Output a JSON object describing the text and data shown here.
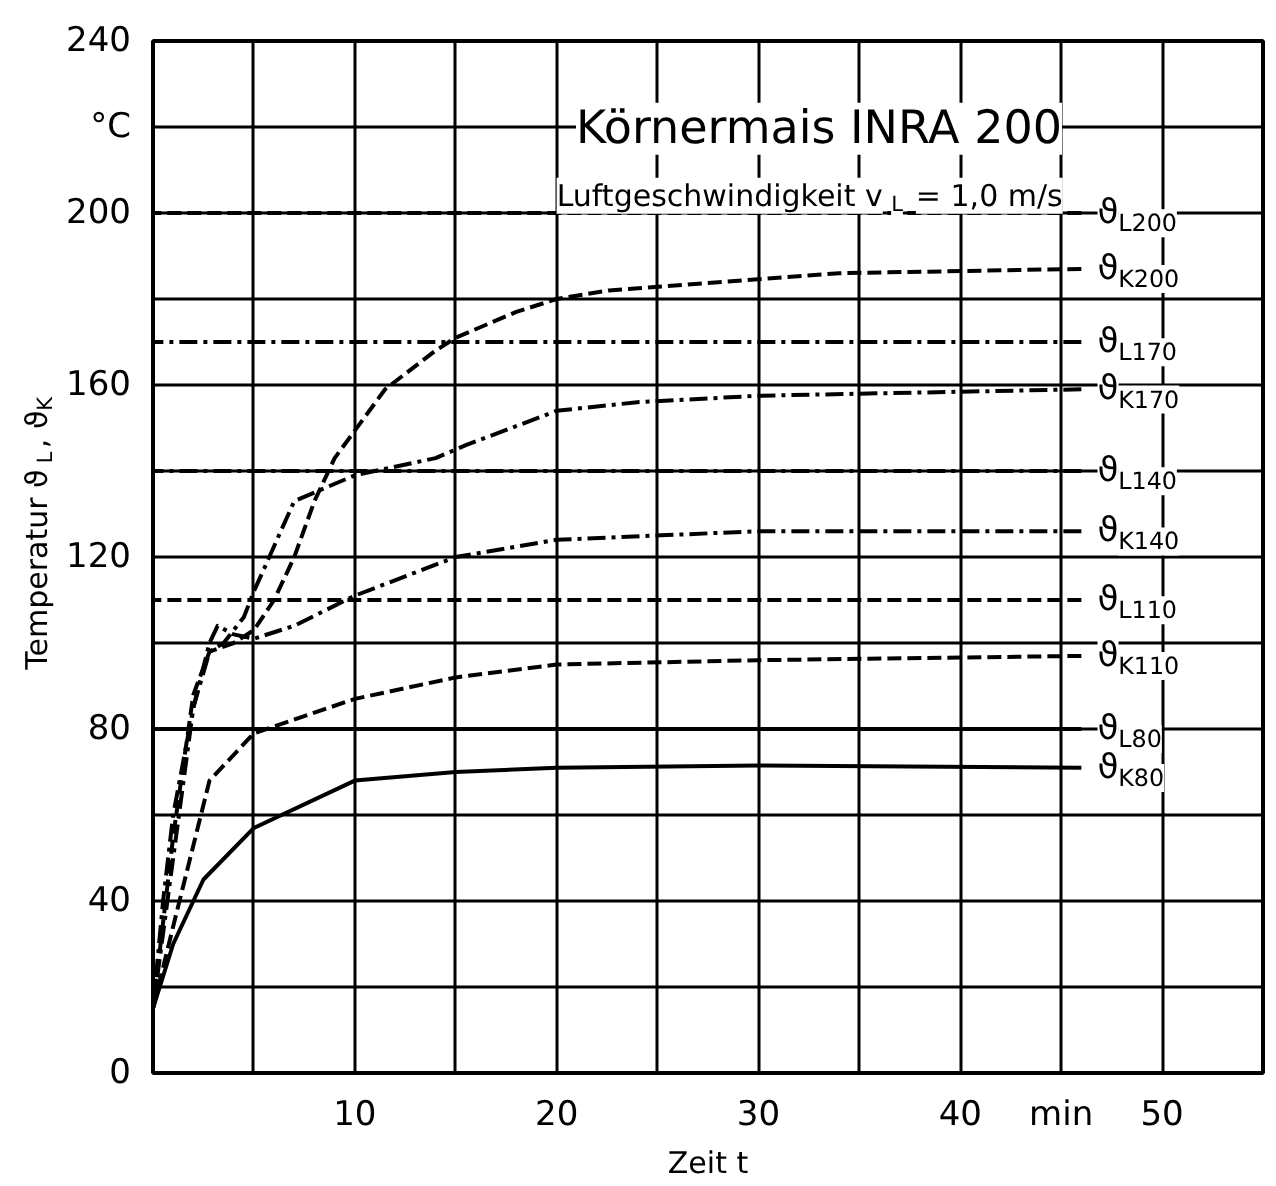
{
  "chart_data": {
    "type": "line",
    "title": "Körnermais INRA 200",
    "subtitle": "Luftgeschwindigkeit v$_{L}$ = 1,0 m/s",
    "xlabel": "Zeit t",
    "ylabel": "Temperatur ϑ$_{L}$, ϑ$_{K}$",
    "xlim": [
      0,
      55
    ],
    "ylim": [
      0,
      240
    ],
    "xticks": [
      {
        "value": 5,
        "label": null
      },
      10,
      {
        "value": 15,
        "label": null
      },
      20,
      {
        "value": 25,
        "label": null
      },
      30,
      {
        "value": 35,
        "label": null
      },
      40,
      {
        "value": 45,
        "label": "min"
      },
      50,
      {
        "value": 55,
        "label": null
      }
    ],
    "yticks": [
      0,
      {
        "value": 20,
        "label": null
      },
      40,
      {
        "value": 60,
        "label": null
      },
      80,
      {
        "value": 100,
        "label": null
      },
      120,
      {
        "value": 140,
        "label": null
      },
      160,
      {
        "value": 180,
        "label": null
      },
      200,
      {
        "value": 220,
        "label": "°C"
      },
      240
    ],
    "grid": true,
    "legend": false,
    "series": [
      {
        "name": "ϑ$_{L200}$",
        "color": "#000000",
        "line_style": "dashed",
        "x": [
          0,
          46
        ],
        "values": [
          200,
          200
        ]
      },
      {
        "name": "ϑ$_{K200}$",
        "color": "#000000",
        "line_style": "dashed",
        "x": [
          0,
          1,
          2,
          2.8,
          4,
          5,
          6,
          7,
          8,
          9,
          11.5,
          14,
          15,
          18,
          20,
          22.6,
          34,
          46
        ],
        "values": [
          15,
          55,
          88,
          98,
          100,
          103,
          110,
          120,
          133,
          143,
          159,
          168,
          171,
          177,
          180,
          182,
          186,
          187
        ]
      },
      {
        "name": "ϑ$_{L170}$",
        "color": "#000000",
        "line_style": "dashdot",
        "x": [
          0,
          46
        ],
        "values": [
          170,
          170
        ]
      },
      {
        "name": "ϑ$_{K170}$",
        "color": "#000000",
        "line_style": "dashdot",
        "x": [
          0,
          1,
          2,
          2.8,
          3.5,
          4.5,
          5,
          7,
          10,
          14,
          15.5,
          20,
          24,
          30,
          46
        ],
        "values": [
          15,
          50,
          85,
          98,
          100,
          106,
          112,
          133,
          139,
          143,
          146,
          154,
          156,
          157.5,
          159
        ]
      },
      {
        "name": "ϑ$_{L140}$",
        "color": "#000000",
        "line_style": "dashdot",
        "x": [
          0,
          46
        ],
        "values": [
          140,
          140
        ]
      },
      {
        "name": "ϑ$_{K140}$",
        "color": "#000000",
        "line_style": "dashdot",
        "x": [
          0,
          0.5,
          1,
          2,
          2.8,
          3.2,
          4,
          5,
          7,
          10,
          15,
          20,
          30,
          46
        ],
        "values": [
          15,
          40,
          60,
          85,
          100,
          104,
          102,
          101,
          104,
          111,
          120,
          124,
          126,
          126
        ]
      },
      {
        "name": "ϑ$_{L110}$",
        "color": "#000000",
        "line_style": "dashed",
        "x": [
          0,
          46
        ],
        "values": [
          110,
          110
        ]
      },
      {
        "name": "ϑ$_{K110}$",
        "color": "#000000",
        "line_style": "dashed",
        "x": [
          0,
          1.1,
          2.8,
          5,
          10,
          15,
          20,
          30,
          46
        ],
        "values": [
          15,
          36,
          68,
          79,
          87,
          92,
          95,
          96,
          97
        ]
      },
      {
        "name": "ϑ$_{L80}$",
        "color": "#000000",
        "line_style": "solid",
        "x": [
          0,
          46
        ],
        "values": [
          80,
          80
        ]
      },
      {
        "name": "ϑ$_{K80}$",
        "color": "#000000",
        "line_style": "solid",
        "x": [
          0,
          1,
          2.5,
          5,
          10,
          15,
          20,
          30,
          46
        ],
        "values": [
          15,
          30,
          45,
          57,
          68,
          70,
          71,
          71.5,
          71
        ]
      }
    ]
  }
}
